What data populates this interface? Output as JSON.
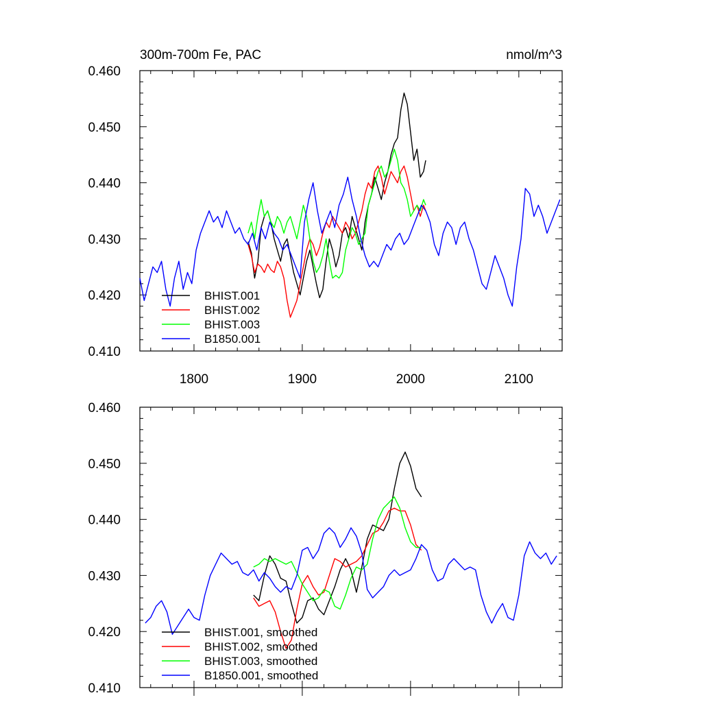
{
  "chart_data": [
    {
      "type": "line",
      "title": "300m-700m Fe, PAC",
      "units": "nmol/m^3",
      "xlim": [
        1750,
        2140
      ],
      "ylim": [
        0.41,
        0.46
      ],
      "yticks": [
        "0.410",
        "0.420",
        "0.430",
        "0.440",
        "0.450",
        "0.460"
      ],
      "xticks": [
        "1800",
        "1900",
        "2000",
        "2100"
      ],
      "legend_position": "bottom-left",
      "series": [
        {
          "name": "BHIST.001",
          "color": "#000000",
          "x": [
            1850,
            1853,
            1856,
            1859,
            1862,
            1865,
            1868,
            1871,
            1874,
            1877,
            1880,
            1883,
            1886,
            1889,
            1892,
            1895,
            1898,
            1901,
            1904,
            1907,
            1910,
            1913,
            1916,
            1919,
            1922,
            1925,
            1928,
            1931,
            1934,
            1937,
            1940,
            1943,
            1946,
            1949,
            1952,
            1955,
            1958,
            1961,
            1964,
            1967,
            1970,
            1973,
            1976,
            1979,
            1982,
            1985,
            1988,
            1991,
            1994,
            1997,
            2000,
            2003,
            2006,
            2009,
            2012,
            2014
          ],
          "y": [
            0.4295,
            0.4275,
            0.423,
            0.426,
            0.432,
            0.434,
            0.435,
            0.433,
            0.43,
            0.428,
            0.426,
            0.429,
            0.43,
            0.427,
            0.424,
            0.422,
            0.42,
            0.423,
            0.426,
            0.428,
            0.425,
            0.422,
            0.4195,
            0.421,
            0.426,
            0.43,
            0.428,
            0.425,
            0.427,
            0.431,
            0.432,
            0.43,
            0.434,
            0.432,
            0.43,
            0.428,
            0.433,
            0.436,
            0.438,
            0.441,
            0.439,
            0.437,
            0.44,
            0.442,
            0.445,
            0.447,
            0.448,
            0.453,
            0.456,
            0.454,
            0.449,
            0.444,
            0.446,
            0.441,
            0.442,
            0.444
          ]
        },
        {
          "name": "BHIST.002",
          "color": "#ff0000",
          "x": [
            1850,
            1853,
            1856,
            1859,
            1862,
            1865,
            1868,
            1871,
            1874,
            1877,
            1880,
            1883,
            1886,
            1889,
            1892,
            1895,
            1898,
            1901,
            1904,
            1907,
            1910,
            1913,
            1916,
            1919,
            1922,
            1925,
            1928,
            1931,
            1934,
            1937,
            1940,
            1943,
            1946,
            1949,
            1952,
            1955,
            1958,
            1961,
            1964,
            1967,
            1970,
            1973,
            1976,
            1979,
            1982,
            1985,
            1988,
            1991,
            1994,
            1997,
            2000,
            2003,
            2006,
            2009,
            2012,
            2014
          ],
          "y": [
            0.429,
            0.427,
            0.424,
            0.4255,
            0.425,
            0.424,
            0.4255,
            0.4245,
            0.424,
            0.426,
            0.425,
            0.423,
            0.419,
            0.416,
            0.4175,
            0.419,
            0.422,
            0.425,
            0.428,
            0.43,
            0.429,
            0.427,
            0.4285,
            0.431,
            0.433,
            0.432,
            0.434,
            0.433,
            0.432,
            0.431,
            0.433,
            0.432,
            0.43,
            0.431,
            0.433,
            0.435,
            0.438,
            0.44,
            0.439,
            0.442,
            0.443,
            0.441,
            0.438,
            0.44,
            0.442,
            0.441,
            0.44,
            0.442,
            0.443,
            0.441,
            0.438,
            0.435,
            0.436,
            0.434,
            0.436,
            0.435
          ]
        },
        {
          "name": "BHIST.003",
          "color": "#00ff00",
          "x": [
            1850,
            1853,
            1856,
            1859,
            1862,
            1865,
            1868,
            1871,
            1874,
            1877,
            1880,
            1883,
            1886,
            1889,
            1892,
            1895,
            1898,
            1901,
            1904,
            1907,
            1910,
            1913,
            1916,
            1919,
            1922,
            1925,
            1928,
            1931,
            1934,
            1937,
            1940,
            1943,
            1946,
            1949,
            1952,
            1955,
            1958,
            1961,
            1964,
            1967,
            1970,
            1973,
            1976,
            1979,
            1982,
            1985,
            1988,
            1991,
            1994,
            1997,
            2000,
            2003,
            2006,
            2009,
            2012,
            2014
          ],
          "y": [
            0.431,
            0.433,
            0.43,
            0.434,
            0.437,
            0.434,
            0.435,
            0.433,
            0.432,
            0.434,
            0.433,
            0.431,
            0.433,
            0.434,
            0.432,
            0.43,
            0.433,
            0.436,
            0.434,
            0.43,
            0.426,
            0.424,
            0.425,
            0.427,
            0.43,
            0.426,
            0.423,
            0.4235,
            0.423,
            0.424,
            0.428,
            0.43,
            0.432,
            0.431,
            0.429,
            0.43,
            0.431,
            0.436,
            0.438,
            0.44,
            0.442,
            0.443,
            0.441,
            0.442,
            0.444,
            0.446,
            0.444,
            0.44,
            0.439,
            0.437,
            0.434,
            0.435,
            0.436,
            0.435,
            0.437,
            0.436
          ]
        },
        {
          "name": "B1850.001",
          "color": "#0000ff",
          "x": [
            1750,
            1754,
            1758,
            1762,
            1766,
            1770,
            1774,
            1778,
            1782,
            1786,
            1790,
            1794,
            1798,
            1802,
            1806,
            1810,
            1814,
            1818,
            1822,
            1826,
            1830,
            1834,
            1838,
            1842,
            1846,
            1850,
            1854,
            1858,
            1862,
            1866,
            1870,
            1874,
            1878,
            1882,
            1886,
            1890,
            1894,
            1898,
            1902,
            1906,
            1910,
            1914,
            1918,
            1922,
            1926,
            1930,
            1934,
            1938,
            1942,
            1946,
            1950,
            1954,
            1958,
            1962,
            1966,
            1970,
            1974,
            1978,
            1982,
            1986,
            1990,
            1994,
            1998,
            2002,
            2006,
            2010,
            2014,
            2018,
            2022,
            2026,
            2030,
            2034,
            2038,
            2042,
            2046,
            2050,
            2054,
            2058,
            2062,
            2066,
            2070,
            2074,
            2078,
            2082,
            2086,
            2090,
            2094,
            2098,
            2102,
            2106,
            2110,
            2114,
            2118,
            2122,
            2126,
            2130,
            2134,
            2138
          ],
          "y": [
            0.423,
            0.419,
            0.422,
            0.425,
            0.424,
            0.426,
            0.421,
            0.418,
            0.423,
            0.426,
            0.421,
            0.424,
            0.422,
            0.428,
            0.431,
            0.433,
            0.435,
            0.433,
            0.434,
            0.432,
            0.435,
            0.433,
            0.431,
            0.432,
            0.43,
            0.429,
            0.431,
            0.428,
            0.432,
            0.43,
            0.433,
            0.431,
            0.43,
            0.428,
            0.429,
            0.427,
            0.425,
            0.423,
            0.433,
            0.437,
            0.44,
            0.435,
            0.431,
            0.433,
            0.435,
            0.432,
            0.436,
            0.438,
            0.441,
            0.437,
            0.434,
            0.43,
            0.427,
            0.425,
            0.426,
            0.425,
            0.427,
            0.429,
            0.428,
            0.43,
            0.431,
            0.429,
            0.43,
            0.432,
            0.434,
            0.436,
            0.435,
            0.433,
            0.429,
            0.427,
            0.431,
            0.433,
            0.432,
            0.429,
            0.432,
            0.433,
            0.43,
            0.428,
            0.425,
            0.422,
            0.421,
            0.424,
            0.427,
            0.425,
            0.423,
            0.42,
            0.418,
            0.425,
            0.43,
            0.439,
            0.438,
            0.434,
            0.436,
            0.434,
            0.431,
            0.433,
            0.435,
            0.437
          ]
        }
      ]
    },
    {
      "type": "line",
      "xlim": [
        1750,
        2140
      ],
      "ylim": [
        0.41,
        0.46
      ],
      "yticks": [
        "0.410",
        "0.420",
        "0.430",
        "0.440",
        "0.450",
        "0.460"
      ],
      "legend_position": "bottom-left",
      "series": [
        {
          "name": "BHIST.001, smoothed",
          "color": "#000000",
          "x": [
            1855,
            1860,
            1865,
            1870,
            1875,
            1880,
            1885,
            1890,
            1895,
            1900,
            1905,
            1910,
            1915,
            1920,
            1925,
            1930,
            1935,
            1940,
            1945,
            1950,
            1955,
            1960,
            1965,
            1970,
            1975,
            1980,
            1985,
            1990,
            1995,
            2000,
            2005,
            2010
          ],
          "y": [
            0.4265,
            0.4255,
            0.43,
            0.4335,
            0.432,
            0.4295,
            0.429,
            0.425,
            0.4215,
            0.4225,
            0.4255,
            0.426,
            0.424,
            0.423,
            0.4255,
            0.428,
            0.431,
            0.433,
            0.431,
            0.427,
            0.4315,
            0.4365,
            0.439,
            0.4385,
            0.438,
            0.44,
            0.4455,
            0.45,
            0.452,
            0.4495,
            0.4455,
            0.444
          ]
        },
        {
          "name": "BHIST.002, smoothed",
          "color": "#ff0000",
          "x": [
            1855,
            1860,
            1865,
            1870,
            1875,
            1880,
            1885,
            1890,
            1895,
            1900,
            1905,
            1910,
            1915,
            1920,
            1925,
            1930,
            1935,
            1940,
            1945,
            1950,
            1955,
            1960,
            1965,
            1970,
            1975,
            1980,
            1985,
            1990,
            1995,
            2000,
            2005,
            2010
          ],
          "y": [
            0.426,
            0.4245,
            0.425,
            0.4255,
            0.4235,
            0.42,
            0.417,
            0.4185,
            0.424,
            0.4285,
            0.43,
            0.428,
            0.4265,
            0.427,
            0.43,
            0.433,
            0.4325,
            0.4315,
            0.432,
            0.4325,
            0.4335,
            0.4355,
            0.4375,
            0.438,
            0.4395,
            0.4415,
            0.442,
            0.4415,
            0.4415,
            0.439,
            0.4355,
            0.4345
          ]
        },
        {
          "name": "BHIST.003, smoothed",
          "color": "#00ff00",
          "x": [
            1855,
            1860,
            1865,
            1870,
            1875,
            1880,
            1885,
            1890,
            1895,
            1900,
            1905,
            1910,
            1915,
            1920,
            1925,
            1930,
            1935,
            1940,
            1945,
            1950,
            1955,
            1960,
            1965,
            1970,
            1975,
            1980,
            1985,
            1990,
            1995,
            2000,
            2005,
            2010
          ],
          "y": [
            0.4315,
            0.432,
            0.433,
            0.4325,
            0.433,
            0.4325,
            0.432,
            0.4325,
            0.4305,
            0.4285,
            0.427,
            0.4255,
            0.426,
            0.4275,
            0.427,
            0.4245,
            0.424,
            0.4265,
            0.4295,
            0.4315,
            0.431,
            0.432,
            0.4365,
            0.44,
            0.442,
            0.443,
            0.444,
            0.442,
            0.4385,
            0.436,
            0.435,
            0.435
          ]
        },
        {
          "name": "B1850.001, smoothed",
          "color": "#0000ff",
          "x": [
            1755,
            1760,
            1765,
            1770,
            1775,
            1780,
            1785,
            1790,
            1795,
            1800,
            1805,
            1810,
            1815,
            1820,
            1825,
            1830,
            1835,
            1840,
            1845,
            1850,
            1855,
            1860,
            1865,
            1870,
            1875,
            1880,
            1885,
            1890,
            1895,
            1900,
            1905,
            1910,
            1915,
            1920,
            1925,
            1930,
            1935,
            1940,
            1945,
            1950,
            1955,
            1960,
            1965,
            1970,
            1975,
            1980,
            1985,
            1990,
            1995,
            2000,
            2005,
            2010,
            2015,
            2020,
            2025,
            2030,
            2035,
            2040,
            2045,
            2050,
            2055,
            2060,
            2065,
            2070,
            2075,
            2080,
            2085,
            2090,
            2095,
            2100,
            2105,
            2110,
            2115,
            2120,
            2125,
            2130,
            2135
          ],
          "y": [
            0.4215,
            0.4225,
            0.4245,
            0.4255,
            0.4235,
            0.4195,
            0.421,
            0.4225,
            0.424,
            0.4225,
            0.422,
            0.4265,
            0.43,
            0.432,
            0.434,
            0.433,
            0.432,
            0.4325,
            0.4305,
            0.43,
            0.431,
            0.429,
            0.4305,
            0.4295,
            0.428,
            0.427,
            0.428,
            0.4275,
            0.43,
            0.4345,
            0.435,
            0.433,
            0.4345,
            0.4375,
            0.4385,
            0.4375,
            0.435,
            0.4365,
            0.4385,
            0.437,
            0.434,
            0.4275,
            0.426,
            0.427,
            0.428,
            0.43,
            0.431,
            0.43,
            0.4305,
            0.431,
            0.433,
            0.4355,
            0.4345,
            0.431,
            0.429,
            0.4295,
            0.432,
            0.433,
            0.432,
            0.431,
            0.4315,
            0.431,
            0.4265,
            0.4235,
            0.4215,
            0.4235,
            0.425,
            0.4225,
            0.422,
            0.4265,
            0.4335,
            0.436,
            0.434,
            0.433,
            0.434,
            0.432,
            0.4335
          ]
        }
      ]
    }
  ]
}
